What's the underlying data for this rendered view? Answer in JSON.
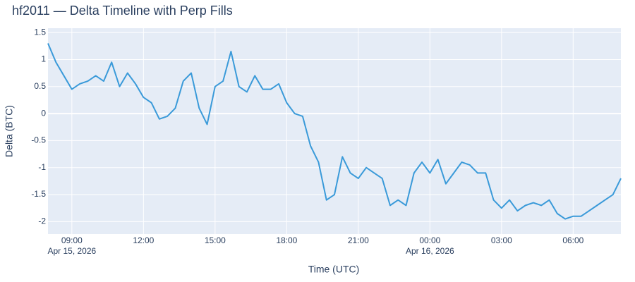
{
  "chart_data": {
    "type": "line",
    "title": "hf2011 — Delta Timeline with Perp Fills",
    "x_label": "Time (UTC)",
    "y_label": "Delta (BTC)",
    "xlim": [
      "2026-04-15T08:00",
      "2026-04-16T08:00"
    ],
    "ylim": [
      -2.23,
      1.58
    ],
    "xticks": [
      {
        "value": "2026-04-15T09:00",
        "label": "09:00"
      },
      {
        "value": "2026-04-15T12:00",
        "label": "12:00"
      },
      {
        "value": "2026-04-15T15:00",
        "label": "15:00"
      },
      {
        "value": "2026-04-15T18:00",
        "label": "18:00"
      },
      {
        "value": "2026-04-15T21:00",
        "label": "21:00"
      },
      {
        "value": "2026-04-16T00:00",
        "label": "00:00"
      },
      {
        "value": "2026-04-16T03:00",
        "label": "03:00"
      },
      {
        "value": "2026-04-16T06:00",
        "label": "06:00"
      }
    ],
    "xtick_dates": [
      {
        "value": "2026-04-15T09:00",
        "label": "Apr 15, 2026"
      },
      {
        "value": "2026-04-16T00:00",
        "label": "Apr 16, 2026"
      }
    ],
    "yticks": [
      -2,
      -1.5,
      -1,
      -0.5,
      0,
      0.5,
      1,
      1.5
    ],
    "grid": true,
    "series": [
      {
        "name": "Delta",
        "color": "#3a9ad9",
        "x": [
          "2026-04-15T08:00",
          "2026-04-15T08:20",
          "2026-04-15T08:40",
          "2026-04-15T09:00",
          "2026-04-15T09:20",
          "2026-04-15T09:40",
          "2026-04-15T10:00",
          "2026-04-15T10:20",
          "2026-04-15T10:40",
          "2026-04-15T11:00",
          "2026-04-15T11:20",
          "2026-04-15T11:40",
          "2026-04-15T12:00",
          "2026-04-15T12:20",
          "2026-04-15T12:40",
          "2026-04-15T13:00",
          "2026-04-15T13:20",
          "2026-04-15T13:40",
          "2026-04-15T14:00",
          "2026-04-15T14:20",
          "2026-04-15T14:40",
          "2026-04-15T15:00",
          "2026-04-15T15:20",
          "2026-04-15T15:40",
          "2026-04-15T16:00",
          "2026-04-15T16:20",
          "2026-04-15T16:40",
          "2026-04-15T17:00",
          "2026-04-15T17:20",
          "2026-04-15T17:40",
          "2026-04-15T18:00",
          "2026-04-15T18:20",
          "2026-04-15T18:40",
          "2026-04-15T19:00",
          "2026-04-15T19:20",
          "2026-04-15T19:40",
          "2026-04-15T20:00",
          "2026-04-15T20:20",
          "2026-04-15T20:40",
          "2026-04-15T21:00",
          "2026-04-15T21:20",
          "2026-04-15T21:40",
          "2026-04-15T22:00",
          "2026-04-15T22:20",
          "2026-04-15T22:40",
          "2026-04-15T23:00",
          "2026-04-15T23:20",
          "2026-04-15T23:40",
          "2026-04-16T00:00",
          "2026-04-16T00:20",
          "2026-04-16T00:40",
          "2026-04-16T01:00",
          "2026-04-16T01:20",
          "2026-04-16T01:40",
          "2026-04-16T02:00",
          "2026-04-16T02:20",
          "2026-04-16T02:40",
          "2026-04-16T03:00",
          "2026-04-16T03:20",
          "2026-04-16T03:40",
          "2026-04-16T04:00",
          "2026-04-16T04:20",
          "2026-04-16T04:40",
          "2026-04-16T05:00",
          "2026-04-16T05:20",
          "2026-04-16T05:40",
          "2026-04-16T06:00",
          "2026-04-16T06:20",
          "2026-04-16T06:40",
          "2026-04-16T07:00",
          "2026-04-16T07:20",
          "2026-04-16T07:40",
          "2026-04-16T08:00"
        ],
        "values": [
          1.3,
          0.95,
          0.7,
          0.45,
          0.55,
          0.6,
          0.7,
          0.6,
          0.95,
          0.5,
          0.75,
          0.55,
          0.3,
          0.2,
          -0.1,
          -0.05,
          0.1,
          0.6,
          0.75,
          0.1,
          -0.2,
          0.5,
          0.6,
          1.15,
          0.5,
          0.4,
          0.7,
          0.45,
          0.45,
          0.55,
          0.2,
          0.0,
          -0.05,
          -0.6,
          -0.9,
          -1.6,
          -1.5,
          -0.8,
          -1.1,
          -1.2,
          -1.0,
          -1.1,
          -1.2,
          -1.7,
          -1.6,
          -1.7,
          -1.1,
          -0.9,
          -1.1,
          -0.85,
          -1.3,
          -1.1,
          -0.9,
          -0.95,
          -1.1,
          -1.1,
          -1.6,
          -1.75,
          -1.6,
          -1.8,
          -1.7,
          -1.65,
          -1.7,
          -1.6,
          -1.85,
          -1.95,
          -1.9,
          -1.9,
          -1.8,
          -1.7,
          -1.6,
          -1.5,
          -1.2
        ]
      }
    ]
  }
}
